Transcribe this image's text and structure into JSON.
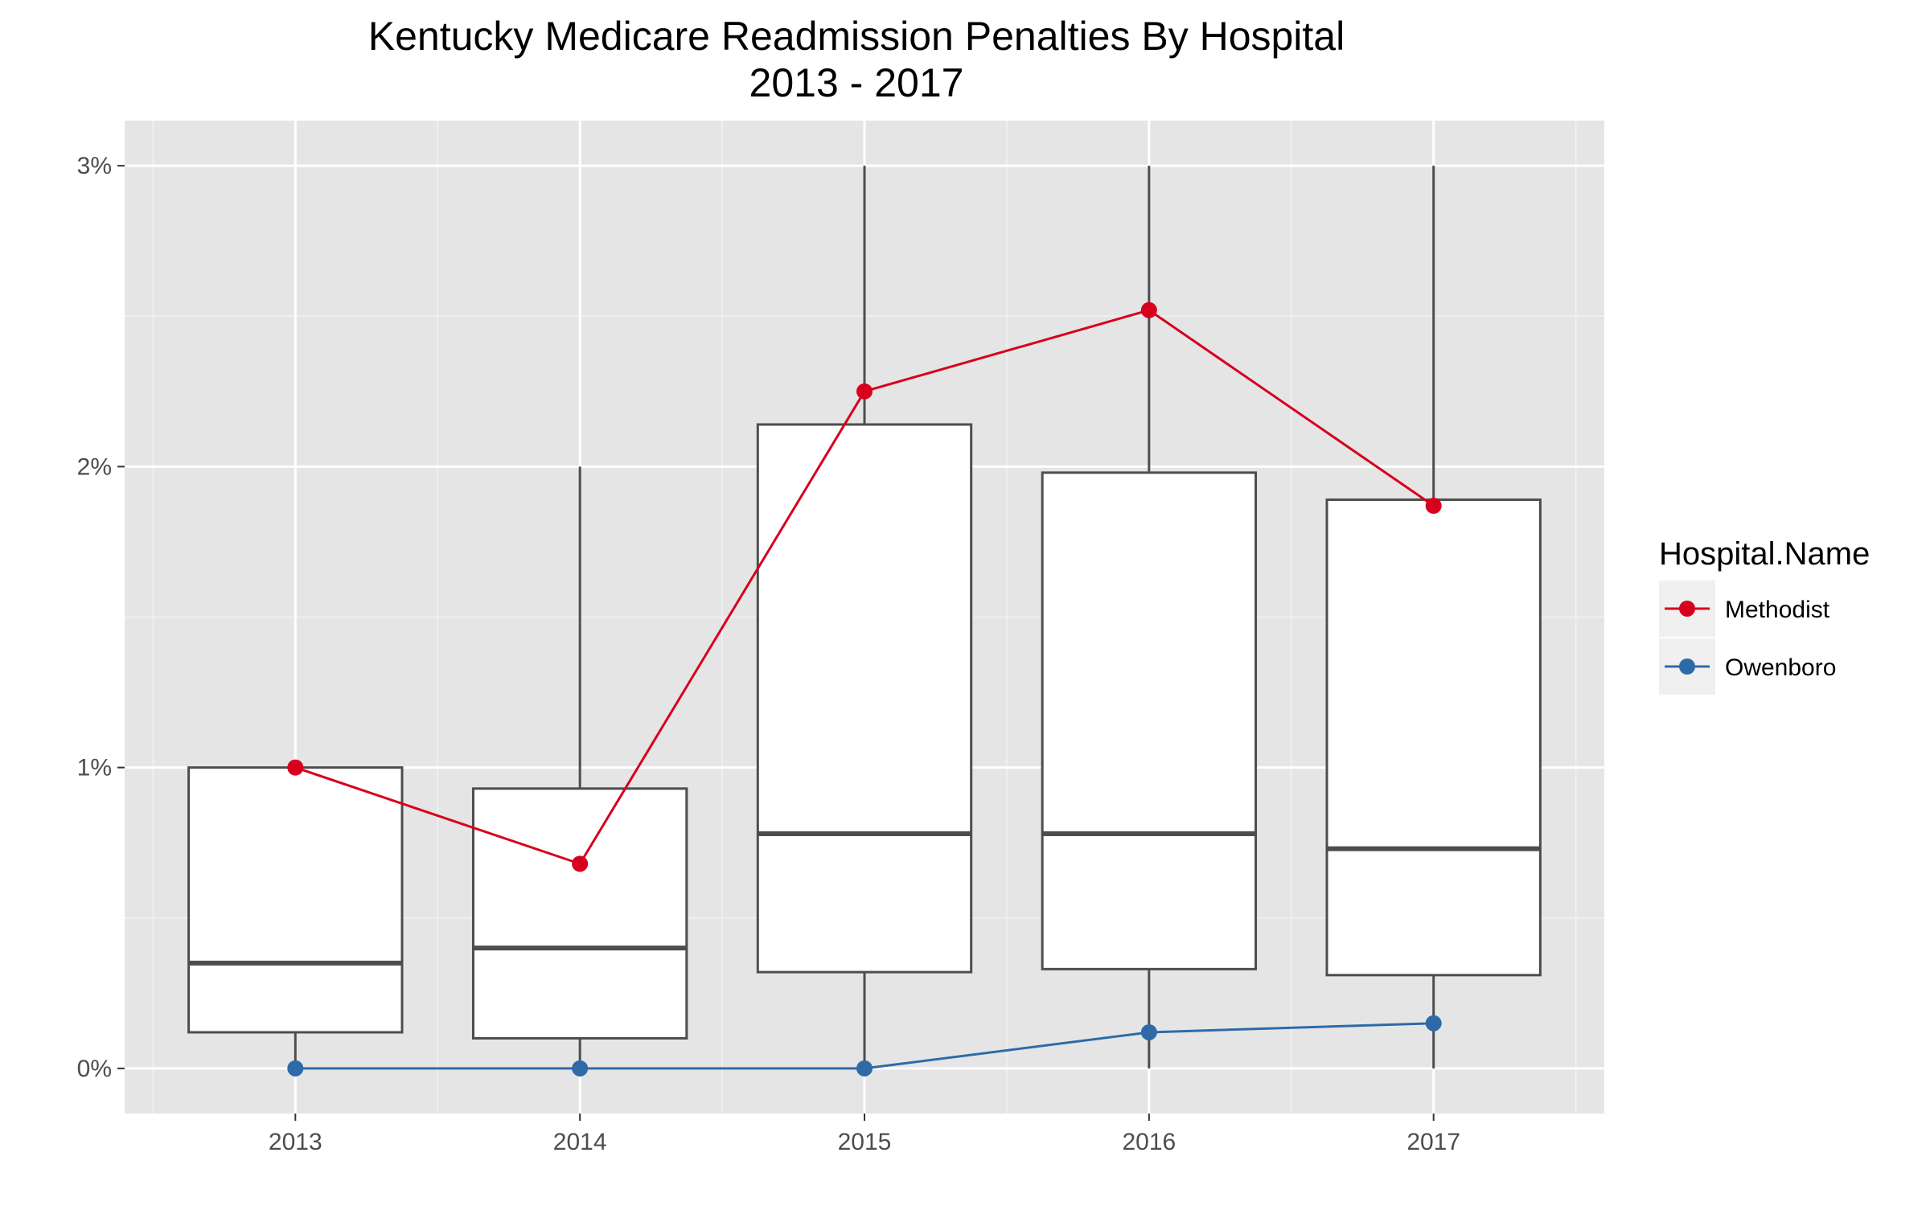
{
  "chart_data": {
    "type": "box",
    "title": "Kentucky Medicare Readmission Penalties By Hospital",
    "subtitle": "2013 - 2017",
    "xlabel": "",
    "ylabel": "",
    "categories": [
      "2013",
      "2014",
      "2015",
      "2016",
      "2017"
    ],
    "y_ticks": [
      0,
      1,
      2,
      3
    ],
    "y_tick_labels": [
      "0%",
      "1%",
      "2%",
      "3%"
    ],
    "ylim": [
      -0.15,
      3.15
    ],
    "grid": true,
    "boxes": [
      {
        "category": "2013",
        "min": 0.0,
        "q1": 0.12,
        "median": 0.35,
        "q3": 1.0,
        "max": 1.0
      },
      {
        "category": "2014",
        "min": 0.0,
        "q1": 0.1,
        "median": 0.4,
        "q3": 0.93,
        "max": 2.0
      },
      {
        "category": "2015",
        "min": 0.0,
        "q1": 0.32,
        "median": 0.78,
        "q3": 2.14,
        "max": 3.0
      },
      {
        "category": "2016",
        "min": 0.0,
        "q1": 0.33,
        "median": 0.78,
        "q3": 1.98,
        "max": 3.0
      },
      {
        "category": "2017",
        "min": 0.0,
        "q1": 0.31,
        "median": 0.73,
        "q3": 1.89,
        "max": 3.0
      }
    ],
    "series": [
      {
        "name": "Methodist",
        "color": "#d7001d",
        "values": [
          1.0,
          0.68,
          2.25,
          2.52,
          1.87
        ]
      },
      {
        "name": "Owenboro",
        "color": "#2e6aa8",
        "values": [
          0.0,
          0.0,
          0.0,
          0.12,
          0.15
        ]
      }
    ],
    "legend": {
      "title": "Hospital.Name",
      "position": "right"
    }
  }
}
